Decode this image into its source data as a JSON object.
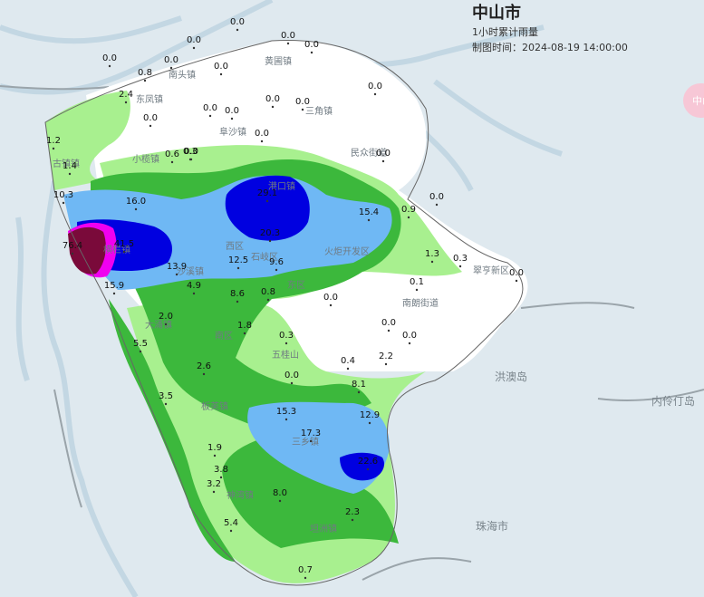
{
  "header": {
    "title": "中山市",
    "subtitle": "1小时累计雨量",
    "time": "制图时间：2024-08-19 14:00:00"
  },
  "side_tab_text": "中山",
  "palette": {
    "none": "#ffffff",
    "light_green": "#a8f08f",
    "green": "#3cb83c",
    "light_blue": "#6fb8f4",
    "blue": "#0000e0",
    "magenta": "#f000f0",
    "maroon": "#7a0a3a",
    "water": "#dfe9ef",
    "river": "#c9dce7"
  },
  "place_labels": [
    {
      "text": "黄圃镇"
    },
    {
      "text": "南头镇"
    },
    {
      "text": "东凤镇"
    },
    {
      "text": "阜沙镇"
    },
    {
      "text": "三角镇"
    },
    {
      "text": "古镇镇"
    },
    {
      "text": "小榄镇"
    },
    {
      "text": "民众街道"
    },
    {
      "text": "港口镇"
    },
    {
      "text": "横栏镇"
    },
    {
      "text": "西区"
    },
    {
      "text": "石岐区"
    },
    {
      "text": "火炬开发区"
    },
    {
      "text": "沙溪镇"
    },
    {
      "text": "东区"
    },
    {
      "text": "翠亨新区"
    },
    {
      "text": "南朗街道"
    },
    {
      "text": "大涌镇"
    },
    {
      "text": "南区"
    },
    {
      "text": "五桂山"
    },
    {
      "text": "板芙镇"
    },
    {
      "text": "三乡镇"
    },
    {
      "text": "神湾镇"
    },
    {
      "text": "坦洲镇"
    },
    {
      "text": "洪澳岛"
    },
    {
      "text": "内伶仃岛"
    },
    {
      "text": "珠海市"
    }
  ],
  "rain_values": [
    "0.0",
    "0.0",
    "0.0",
    "0.0",
    "0.8",
    "0.0",
    "0.0",
    "0.0",
    "0.0",
    "2.4",
    "0.0",
    "0.0",
    "0.0",
    "0.0",
    "0.0",
    "0.0",
    "0.0",
    "1.2",
    "0.6",
    "0.3",
    "1.4",
    "0.0",
    "10.3",
    "16.0",
    "29.1",
    "15.4",
    "0.9",
    "0.0",
    "76.4",
    "41.5",
    "20.3",
    "1.3",
    "0.3",
    "13.9",
    "12.5",
    "9.6",
    "0.0",
    "15.9",
    "4.9",
    "8.6",
    "0.8",
    "0.0",
    "0.1",
    "2.0",
    "1.8",
    "0.0",
    "0.0",
    "5.5",
    "0.3",
    "2.6",
    "0.4",
    "2.2",
    "0.0",
    "3.5",
    "8.1",
    "15.3",
    "12.9",
    "17.3",
    "1.9",
    "22.6",
    "3.8",
    "3.2",
    "8.0",
    "5.4",
    "2.3",
    "0.7"
  ]
}
